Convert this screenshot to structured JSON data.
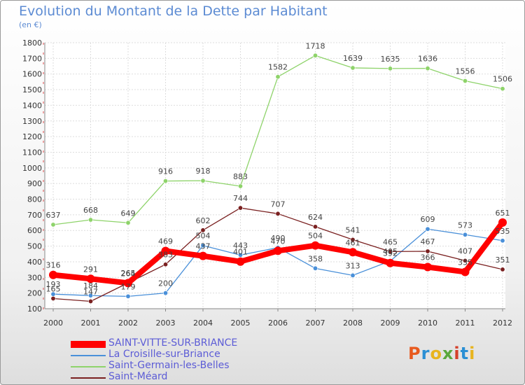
{
  "page": {
    "title": "Evolution du Montant de la Dette par Habitant",
    "subtitle": "(en €)"
  },
  "logo": {
    "letters": [
      "P",
      "r",
      "o",
      "x",
      "i",
      "t",
      "i"
    ],
    "colors": [
      "#e85a1e",
      "#2a8fd4",
      "#e8b41e",
      "#5aa83c",
      "#d4402a",
      "#2a8fd4",
      "#e8b41e"
    ]
  },
  "chart_data": {
    "type": "line",
    "x": [
      "2000",
      "2001",
      "2002",
      "2003",
      "2004",
      "2005",
      "2006",
      "2007",
      "2008",
      "2009",
      "2010",
      "2011",
      "2012"
    ],
    "ylim": [
      100,
      1800
    ],
    "yticks": [
      100,
      200,
      300,
      400,
      500,
      600,
      700,
      800,
      900,
      1000,
      1100,
      1200,
      1300,
      1400,
      1500,
      1600,
      1700,
      1800
    ],
    "grid": true,
    "legend_position": "bottom-left",
    "series": [
      {
        "name": "SAINT-VITTE-SUR-BRIANCE",
        "color": "#ff0000",
        "values": [
          316,
          291,
          264,
          469,
          437,
          401,
          470,
          504,
          461,
          392,
          366,
          335,
          651
        ],
        "labels": [
          "316",
          "291",
          "264",
          "469",
          "437",
          "401",
          "470",
          "504",
          "461",
          "392",
          "366",
          "335",
          "651"
        ]
      },
      {
        "name": "La Croisille-sur-Briance",
        "color": "#4a90d9",
        "values": [
          193,
          184,
          179,
          200,
          504,
          443,
          490,
          358,
          313,
          405,
          609,
          573,
          535
        ],
        "labels": [
          "193",
          "184",
          "179",
          "200",
          "504",
          "443",
          "490",
          "358",
          "313",
          "405",
          "609",
          "573",
          "535"
        ]
      },
      {
        "name": "Saint-Germain-les-Belles",
        "color": "#8ed36a",
        "values": [
          637,
          668,
          649,
          916,
          918,
          883,
          1582,
          1718,
          1639,
          1635,
          1636,
          1556,
          1506
        ],
        "labels": [
          "637",
          "668",
          "649",
          "916",
          "918",
          "883",
          "1582",
          "1718",
          "1639",
          "1635",
          "1636",
          "1556",
          "1506"
        ]
      },
      {
        "name": "Saint-Méard",
        "color": "#7a2020",
        "values": [
          165,
          147,
          265,
          383,
          602,
          744,
          707,
          624,
          541,
          465,
          467,
          407,
          351
        ],
        "labels": [
          "165",
          "147",
          "265",
          "383",
          "602",
          "744",
          "707",
          "624",
          "541",
          "465",
          "467",
          "407",
          "351"
        ]
      }
    ]
  }
}
